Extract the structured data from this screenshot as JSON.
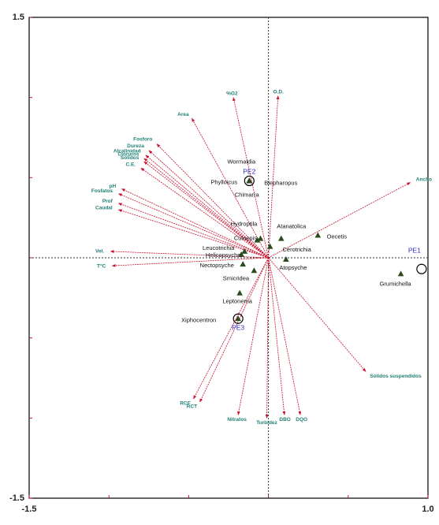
{
  "chart_data": {
    "type": "biplot",
    "xlim": [
      -1.5,
      1.0
    ],
    "ylim": [
      -1.5,
      1.5
    ],
    "xticks": [
      -1.5,
      {
        "value": 1.0,
        "label": "1.0"
      }
    ],
    "yticks": [
      1.5,
      -1.5
    ],
    "xminorticks": [
      -1.0,
      -0.5,
      0,
      0.5
    ],
    "yminorticks": [
      1.0,
      0.5,
      0,
      -0.5,
      -1.0
    ],
    "arrow_color": "#c8102e",
    "arrow_label_color": "#1f7f74",
    "species_color": "#2d4a1e",
    "site_color": "#2b2bc0",
    "environment": [
      {
        "name": "%O2",
        "x": -0.22,
        "y": 1.0
      },
      {
        "name": "O.D.",
        "x": 0.06,
        "y": 1.01
      },
      {
        "name": "Area",
        "x": -0.48,
        "y": 0.87
      },
      {
        "name": "Fosforo",
        "x": -0.7,
        "y": 0.71
      },
      {
        "name": "Dureza",
        "x": -0.75,
        "y": 0.67
      },
      {
        "name": "Alcalinidad",
        "x": -0.77,
        "y": 0.64
      },
      {
        "name": "Cloruros",
        "x": -0.78,
        "y": 0.62
      },
      {
        "name": "Sólidos",
        "x": -0.78,
        "y": 0.6
      },
      {
        "name": "C.E.",
        "x": -0.8,
        "y": 0.56
      },
      {
        "name": "pH",
        "x": -0.92,
        "y": 0.43
      },
      {
        "name": "Fosfatos",
        "x": -0.94,
        "y": 0.4
      },
      {
        "name": "Prof",
        "x": -0.94,
        "y": 0.34
      },
      {
        "name": "Caudal",
        "x": -0.94,
        "y": 0.3
      },
      {
        "name": "Vel.",
        "x": -0.99,
        "y": 0.04
      },
      {
        "name": "T°C",
        "x": -0.98,
        "y": -0.05
      },
      {
        "name": "Ancho",
        "x": 0.89,
        "y": 0.47
      },
      {
        "name": "Sólidos suspendidos",
        "x": 0.61,
        "y": -0.71
      },
      {
        "name": "RCF",
        "x": -0.47,
        "y": -0.88
      },
      {
        "name": "RCT",
        "x": -0.43,
        "y": -0.9
      },
      {
        "name": "Nitratos",
        "x": -0.19,
        "y": -0.98
      },
      {
        "name": "Turbidez",
        "x": -0.01,
        "y": -1.0
      },
      {
        "name": "DBO",
        "x": 0.1,
        "y": -0.98
      },
      {
        "name": "DQO",
        "x": 0.2,
        "y": -0.98
      }
    ],
    "species": [
      {
        "name": "Wormaldia",
        "x": -0.12,
        "y": 0.48
      },
      {
        "name": "Phylloicus",
        "x": -0.12,
        "y": 0.48
      },
      {
        "name": "Blepharopus",
        "x": -0.12,
        "y": 0.48
      },
      {
        "name": "Chimarra",
        "x": -0.12,
        "y": 0.48
      },
      {
        "name": "Hydroptila",
        "x": -0.05,
        "y": 0.12
      },
      {
        "name": "Culoepis",
        "x": -0.07,
        "y": 0.11
      },
      {
        "name": "Atanatolica",
        "x": 0.08,
        "y": 0.12
      },
      {
        "name": "Oecetis",
        "x": 0.31,
        "y": 0.14
      },
      {
        "name": "Cerotrichia",
        "x": 0.01,
        "y": 0.07
      },
      {
        "name": "Leucotrichia",
        "x": -0.15,
        "y": 0.04
      },
      {
        "name": "Helicopsyche",
        "x": -0.17,
        "y": 0.02
      },
      {
        "name": "Nectopsyche",
        "x": -0.16,
        "y": -0.04
      },
      {
        "name": "Atopsyche",
        "x": 0.11,
        "y": -0.01
      },
      {
        "name": "Smicridea",
        "x": -0.09,
        "y": -0.08
      },
      {
        "name": "Grumichella",
        "x": 0.83,
        "y": -0.1
      },
      {
        "name": "Leptonema",
        "x": -0.18,
        "y": -0.22
      },
      {
        "name": "Xiphocentron",
        "x": -0.19,
        "y": -0.38
      }
    ],
    "sites": [
      {
        "name": "PE1",
        "x": 0.96,
        "y": -0.07
      },
      {
        "name": "PE2",
        "x": -0.12,
        "y": 0.48
      },
      {
        "name": "PE3",
        "x": -0.19,
        "y": -0.38
      }
    ]
  }
}
